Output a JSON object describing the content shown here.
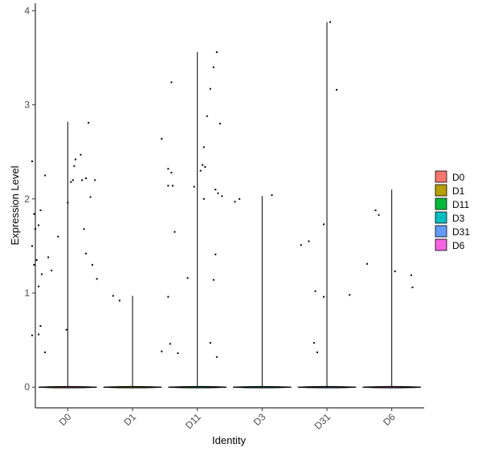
{
  "chart_data": {
    "type": "violin",
    "xlabel": "Identity",
    "ylabel": "Expression Level",
    "categories": [
      "D0",
      "D1",
      "D11",
      "D3",
      "D31",
      "D6"
    ],
    "ylim": [
      -0.22,
      4.08
    ],
    "yticks": [
      0,
      1,
      2,
      3,
      4
    ],
    "grid": false,
    "legend": {
      "position": "right",
      "entries": [
        {
          "label": "D0",
          "color": "#F8766D"
        },
        {
          "label": "D1",
          "color": "#B79F00"
        },
        {
          "label": "D11",
          "color": "#00BA38"
        },
        {
          "label": "D3",
          "color": "#00BFC4"
        },
        {
          "label": "D31",
          "color": "#619CFF"
        },
        {
          "label": "D6",
          "color": "#F564E3"
        }
      ]
    },
    "series": [
      {
        "category": "D0",
        "color": "#F8766D",
        "max": 2.82,
        "points": [
          [
            -0.55,
            2.4
          ],
          [
            -0.52,
            1.84
          ],
          [
            -0.45,
            1.72
          ],
          [
            -0.5,
            1.68
          ],
          [
            -0.42,
            1.88
          ],
          [
            -0.35,
            2.25
          ],
          [
            -0.55,
            1.5
          ],
          [
            -0.48,
            1.35
          ],
          [
            -0.52,
            1.3
          ],
          [
            -0.4,
            1.2
          ],
          [
            -0.45,
            1.07
          ],
          [
            -0.3,
            1.38
          ],
          [
            -0.25,
            1.24
          ],
          [
            -0.42,
            0.65
          ],
          [
            -0.45,
            0.56
          ],
          [
            -0.55,
            0.55
          ],
          [
            -0.35,
            0.37
          ],
          [
            -0.02,
            0.61
          ],
          [
            -0.15,
            1.6
          ],
          [
            0.0,
            1.96
          ],
          [
            0.05,
            2.18
          ],
          [
            0.08,
            2.2
          ],
          [
            0.1,
            2.35
          ],
          [
            0.12,
            2.42
          ],
          [
            0.2,
            2.47
          ],
          [
            0.22,
            2.2
          ],
          [
            0.28,
            2.22
          ],
          [
            0.32,
            2.81
          ],
          [
            0.35,
            2.02
          ],
          [
            0.42,
            2.2
          ],
          [
            0.25,
            1.68
          ],
          [
            0.28,
            1.42
          ],
          [
            0.38,
            1.3
          ],
          [
            0.45,
            1.15
          ]
        ]
      },
      {
        "category": "D1",
        "color": "#B79F00",
        "max": 0.97,
        "points": [
          [
            -0.3,
            0.97
          ],
          [
            -0.2,
            0.92
          ],
          [
            0.45,
            0.38
          ]
        ]
      },
      {
        "category": "D11",
        "color": "#00BA38",
        "max": 3.56,
        "points": [
          [
            -0.55,
            2.64
          ],
          [
            -0.45,
            2.32
          ],
          [
            -0.4,
            2.28
          ],
          [
            -0.45,
            2.14
          ],
          [
            -0.38,
            2.14
          ],
          [
            -0.35,
            1.65
          ],
          [
            -0.45,
            0.96
          ],
          [
            -0.3,
            0.36
          ],
          [
            -0.42,
            0.46
          ],
          [
            -0.15,
            1.16
          ],
          [
            -0.05,
            2.13
          ],
          [
            -0.4,
            3.24
          ],
          [
            0.05,
            2.3
          ],
          [
            0.08,
            2.36
          ],
          [
            0.1,
            2.55
          ],
          [
            0.12,
            2.34
          ],
          [
            0.15,
            2.88
          ],
          [
            0.2,
            3.17
          ],
          [
            0.25,
            3.4
          ],
          [
            0.3,
            3.56
          ],
          [
            0.35,
            2.8
          ],
          [
            0.1,
            2.0
          ],
          [
            0.28,
            2.1
          ],
          [
            0.32,
            2.06
          ],
          [
            0.38,
            2.03
          ],
          [
            0.28,
            1.41
          ],
          [
            0.25,
            1.14
          ],
          [
            0.2,
            0.47
          ],
          [
            0.3,
            0.32
          ]
        ]
      },
      {
        "category": "D3",
        "color": "#00BFC4",
        "max": 2.03,
        "points": [
          [
            -0.42,
            1.97
          ],
          [
            -0.35,
            2.0
          ],
          [
            0.15,
            2.04
          ]
        ]
      },
      {
        "category": "D31",
        "color": "#619CFF",
        "max": 3.88,
        "points": [
          [
            -0.4,
            1.51
          ],
          [
            -0.28,
            1.55
          ],
          [
            -0.18,
            1.02
          ],
          [
            -0.2,
            0.47
          ],
          [
            -0.15,
            0.37
          ],
          [
            -0.05,
            0.96
          ],
          [
            -0.05,
            1.73
          ],
          [
            0.05,
            3.88
          ],
          [
            0.15,
            3.16
          ],
          [
            0.35,
            0.98
          ]
        ]
      },
      {
        "category": "D6",
        "color": "#F564E3",
        "max": 2.1,
        "points": [
          [
            -0.38,
            1.31
          ],
          [
            -0.25,
            1.88
          ],
          [
            -0.2,
            1.83
          ],
          [
            0.05,
            1.23
          ],
          [
            0.3,
            1.19
          ],
          [
            0.32,
            1.06
          ]
        ]
      }
    ]
  }
}
